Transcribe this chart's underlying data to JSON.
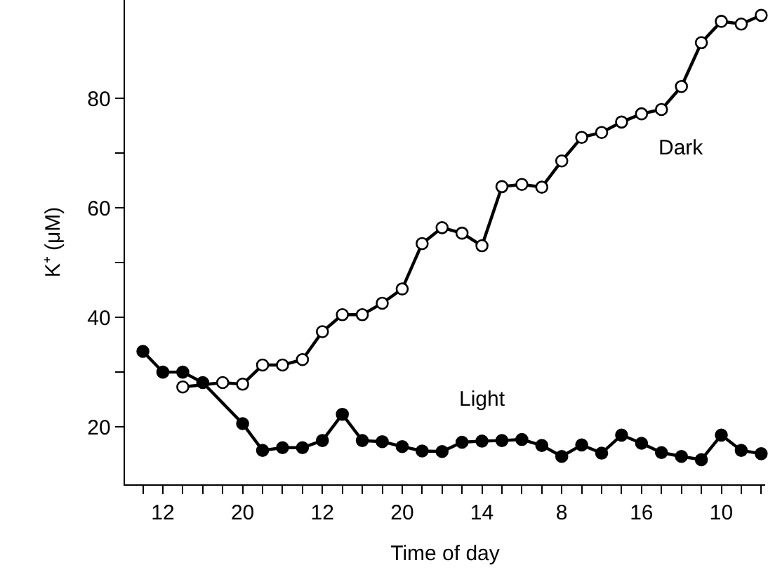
{
  "chart_data": {
    "type": "line",
    "xlabel": "Time of day",
    "ylabel": "K⁺ (μM)",
    "ylim": [
      9.5,
      98
    ],
    "categories": [
      null,
      "12",
      null,
      null,
      null,
      "20",
      null,
      null,
      null,
      "12",
      null,
      null,
      null,
      "20",
      null,
      null,
      null,
      "14",
      null,
      null,
      null,
      "8",
      null,
      null,
      null,
      "16",
      null,
      null,
      null,
      "10",
      null,
      null
    ],
    "yticks": [
      20,
      {
        "value": 30,
        "label": null
      },
      40,
      {
        "value": 50,
        "label": null
      },
      60,
      {
        "value": 70,
        "label": null
      },
      80
    ],
    "legend": false,
    "line_style": "solid",
    "marker": "circle",
    "series": [
      {
        "name": "Dark",
        "color": "#ffffff",
        "values": [
          null,
          null,
          27.3,
          null,
          28.1,
          27.8,
          31.3,
          31.3,
          32.3,
          37.4,
          40.5,
          40.5,
          42.6,
          45.2,
          53.5,
          56.4,
          55.4,
          53.1,
          63.9,
          64.3,
          63.8,
          68.6,
          72.9,
          73.8,
          75.7,
          77.2,
          78,
          82.2,
          90.2,
          94.1,
          93.6,
          95.2
        ]
      },
      {
        "name": "Light",
        "color": "#000000",
        "values": [
          33.8,
          30,
          30,
          28.1,
          null,
          20.6,
          15.7,
          16.2,
          16.2,
          17.5,
          22.3,
          17.5,
          17.3,
          16.4,
          15.6,
          15.5,
          17.2,
          17.4,
          17.5,
          17.7,
          16.6,
          14.6,
          16.7,
          15.2,
          18.5,
          17,
          15.3,
          14.6,
          14,
          18.5,
          15.7,
          15.1
        ]
      }
    ]
  }
}
